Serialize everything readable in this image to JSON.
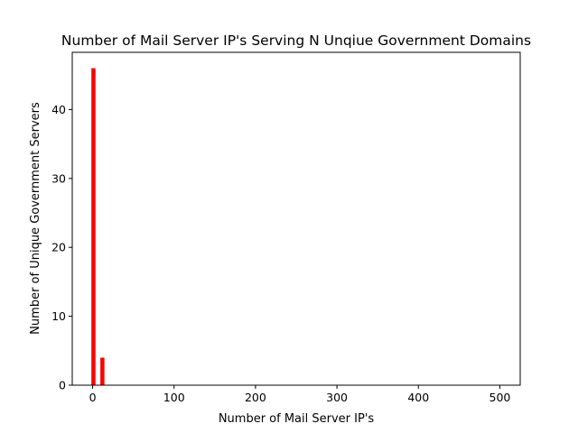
{
  "chart_data": {
    "type": "bar",
    "title": "Number of Mail Server IP's Serving N Unqiue Government Domains",
    "xlabel": "Number of Mail Server IP's",
    "ylabel": "Number of Unique Government Servers",
    "xlim": [
      -25,
      525
    ],
    "ylim": [
      0,
      48.3
    ],
    "xticks": [
      0,
      100,
      200,
      300,
      400,
      500
    ],
    "yticks": [
      0,
      10,
      20,
      30,
      40
    ],
    "bar_color": "#ff0000",
    "bar_width": 5,
    "bars": [
      {
        "x": 1,
        "y": 46
      },
      {
        "x": 12,
        "y": 4
      }
    ],
    "grid": false,
    "legend": false
  }
}
